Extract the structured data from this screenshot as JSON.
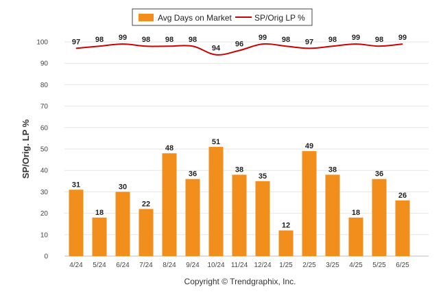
{
  "chart_data": {
    "type": "bar",
    "categories": [
      "4/24",
      "5/24",
      "6/24",
      "7/24",
      "8/24",
      "9/24",
      "10/24",
      "11/24",
      "12/24",
      "1/25",
      "2/25",
      "3/25",
      "4/25",
      "5/25",
      "6/25"
    ],
    "series": [
      {
        "name": "Avg Days on Market",
        "type": "bar",
        "color": "#f28e1c",
        "values": [
          31,
          18,
          30,
          22,
          48,
          36,
          51,
          38,
          35,
          12,
          49,
          38,
          18,
          36,
          26
        ]
      },
      {
        "name": "SP/Orig LP %",
        "type": "line",
        "color": "#cc0000",
        "values": [
          97,
          98,
          99,
          98,
          98,
          98,
          94,
          96,
          99,
          98,
          97,
          98,
          99,
          98,
          99
        ]
      }
    ],
    "ylabel": "SP/Orig. LP %",
    "ylim": [
      0,
      100
    ],
    "yticks": [
      0,
      10,
      20,
      30,
      40,
      50,
      60,
      70,
      80,
      90,
      100
    ],
    "grid": true,
    "legend_position": "top-center"
  },
  "footer": {
    "copyright": "Copyright © Trendgraphix, Inc."
  }
}
